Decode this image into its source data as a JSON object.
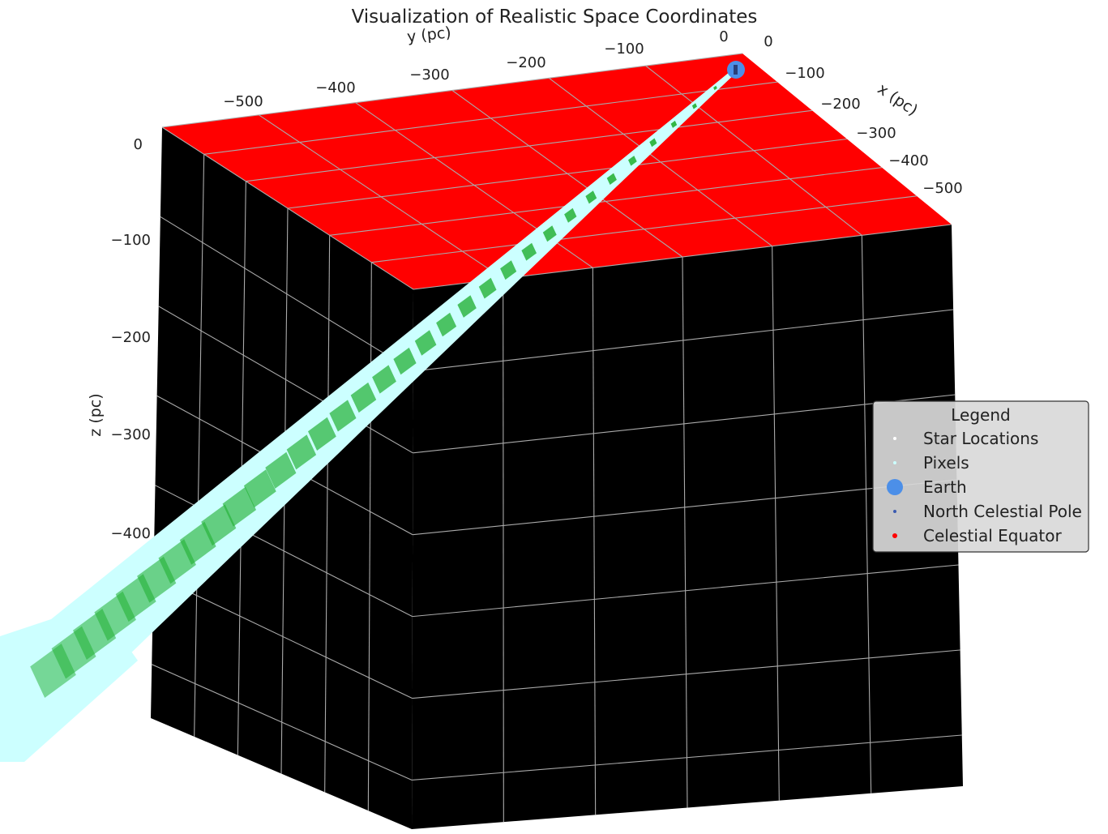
{
  "chart_data": {
    "type": "scatter",
    "projection": "3d",
    "title": "Visualization of Realistic Space Coordinates",
    "axes": {
      "x": {
        "label": "x (pc)",
        "ticks": [
          "0",
          "−100",
          "−200",
          "−300",
          "−400",
          "−500"
        ],
        "range": [
          0,
          -550
        ]
      },
      "y": {
        "label": "y (pc)",
        "ticks": [
          "−500",
          "−400",
          "−300",
          "−200",
          "−100",
          "0"
        ],
        "range": [
          -550,
          0
        ]
      },
      "z": {
        "label": "z (pc)",
        "ticks": [
          "0",
          "−100",
          "−200",
          "−300",
          "−400"
        ],
        "range": [
          0,
          -550
        ]
      }
    },
    "grid": true,
    "pane_colors": {
      "top": "#ff0000",
      "sides": "#000000",
      "grid": "#aaaaaa"
    },
    "series": [
      {
        "name": "Star Locations",
        "color": "#ffffff",
        "marker": "point"
      },
      {
        "name": "Pixels",
        "color": "#ccffff",
        "marker": "point",
        "secondary_color": "#22b033"
      },
      {
        "name": "Earth",
        "color": "#4c8fe8",
        "marker": "circle",
        "point": [
          0,
          0,
          0
        ]
      },
      {
        "name": "North Celestial Pole",
        "color": "#3b5bb0",
        "marker": "point"
      },
      {
        "name": "Celestial Equator",
        "color": "#ff0000",
        "marker": "point"
      }
    ],
    "legend": {
      "title": "Legend",
      "placement": "right"
    }
  }
}
